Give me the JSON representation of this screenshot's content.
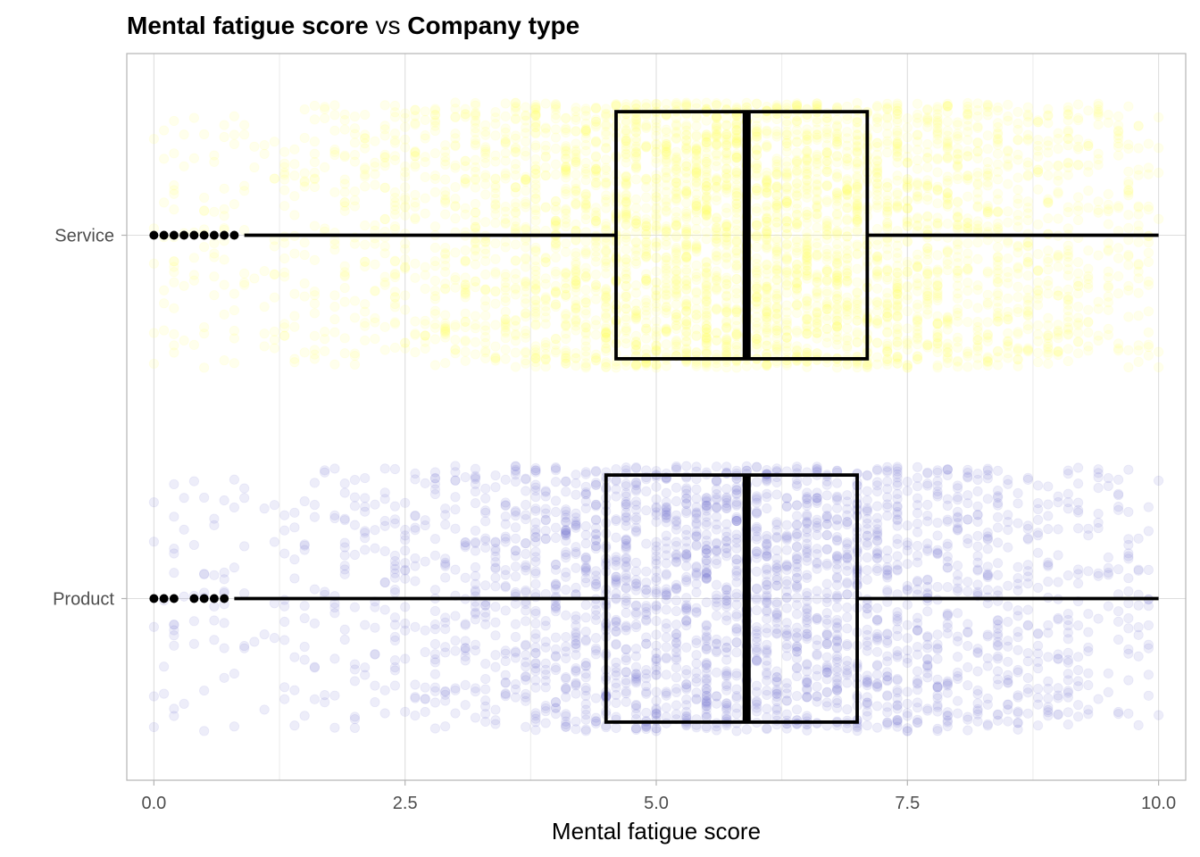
{
  "chart_data": {
    "type": "boxplot",
    "orientation": "horizontal",
    "title": {
      "parts": [
        {
          "text": "Mental fatigue score",
          "bold": true
        },
        {
          "text": " vs ",
          "bold": false
        },
        {
          "text": "Company type",
          "bold": true
        }
      ]
    },
    "xlabel": "Mental fatigue score",
    "ylabel": "",
    "xlim": [
      -0.27,
      10.27
    ],
    "x_ticks": [
      {
        "value": 0,
        "label": "0.0"
      },
      {
        "value": 2.5,
        "label": "2.5"
      },
      {
        "value": 5,
        "label": "5.0"
      },
      {
        "value": 7.5,
        "label": "7.5"
      },
      {
        "value": 10,
        "label": "10.0"
      }
    ],
    "grid": true,
    "categories": [
      "Service",
      "Product"
    ],
    "series": [
      {
        "category": "Service",
        "color": "#ffff66",
        "jitter_alpha": 0.12,
        "q1": 4.6,
        "median": 5.9,
        "q3": 7.1,
        "whisker_low": 0.9,
        "whisker_high": 10.0,
        "outliers": [
          0.0,
          0.1,
          0.2,
          0.3,
          0.4,
          0.5,
          0.6,
          0.7,
          0.8
        ]
      },
      {
        "category": "Product",
        "color": "#6a6acd",
        "jitter_alpha": 0.12,
        "q1": 4.5,
        "median": 5.9,
        "q3": 7.0,
        "whisker_low": 0.8,
        "whisker_high": 10.0,
        "outliers": [
          0.0,
          0.1,
          0.2,
          0.4,
          0.5,
          0.6,
          0.7
        ]
      }
    ]
  }
}
